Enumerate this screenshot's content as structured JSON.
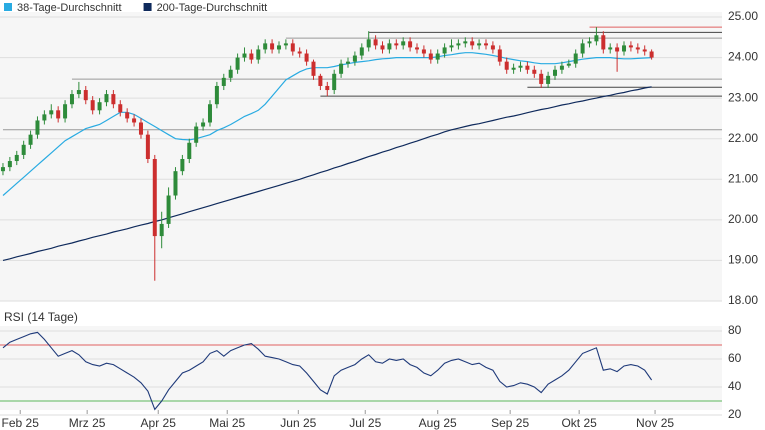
{
  "chart_data": [
    {
      "type": "candlestick",
      "x": [
        0,
        1,
        2,
        3,
        4,
        5,
        6,
        7,
        8,
        9,
        10,
        11,
        12,
        13,
        14,
        15,
        16,
        17,
        18,
        19,
        20,
        21,
        22,
        23,
        24,
        25,
        26,
        27,
        28,
        29,
        30,
        31,
        32,
        33,
        34,
        35,
        36,
        37,
        38,
        39,
        40,
        41,
        42,
        43,
        44,
        45,
        46,
        47,
        48,
        49,
        50,
        51,
        52,
        53,
        54,
        55,
        56,
        57,
        58,
        59,
        60,
        61,
        62,
        63,
        64,
        65,
        66,
        67,
        68,
        69,
        70,
        71,
        72,
        73,
        74,
        75,
        76,
        77,
        78,
        79,
        80,
        81,
        82,
        83,
        84,
        85,
        86,
        87,
        88,
        89,
        90,
        91,
        92,
        93,
        94
      ],
      "open": [
        21.2,
        21.3,
        21.45,
        21.6,
        21.85,
        22.1,
        22.45,
        22.6,
        22.7,
        22.5,
        22.85,
        23.1,
        23.2,
        22.95,
        22.7,
        22.9,
        23.1,
        22.85,
        22.65,
        22.5,
        22.4,
        22.1,
        21.5,
        19.6,
        19.9,
        20.6,
        21.2,
        21.5,
        21.9,
        22.3,
        22.4,
        22.85,
        23.3,
        23.5,
        23.7,
        24.0,
        24.1,
        23.95,
        24.2,
        24.35,
        24.2,
        24.3,
        24.35,
        24.15,
        24.1,
        23.9,
        23.55,
        23.3,
        23.2,
        23.6,
        23.85,
        23.9,
        24.05,
        24.25,
        24.45,
        24.3,
        24.2,
        24.35,
        24.3,
        24.4,
        24.25,
        24.2,
        24.1,
        23.95,
        24.1,
        24.25,
        24.3,
        24.35,
        24.4,
        24.3,
        24.35,
        24.3,
        24.2,
        23.9,
        23.7,
        23.75,
        23.8,
        23.7,
        23.6,
        23.35,
        23.55,
        23.7,
        23.8,
        23.85,
        24.1,
        24.35,
        24.4,
        24.55,
        24.2,
        24.25,
        24.15,
        24.3,
        24.25,
        24.2,
        24.15
      ],
      "high": [
        21.4,
        21.55,
        21.7,
        21.95,
        22.2,
        22.55,
        22.7,
        22.85,
        22.8,
        22.95,
        23.2,
        23.4,
        23.3,
        23.05,
        23.0,
        23.2,
        23.2,
        22.95,
        22.75,
        22.6,
        22.5,
        22.2,
        21.6,
        20.2,
        20.8,
        21.3,
        21.6,
        22.0,
        22.4,
        22.5,
        22.95,
        23.4,
        23.6,
        23.8,
        24.1,
        24.25,
        24.2,
        24.3,
        24.45,
        24.45,
        24.4,
        24.45,
        24.45,
        24.25,
        24.2,
        23.95,
        23.6,
        23.4,
        23.7,
        23.95,
        24.0,
        24.15,
        24.35,
        24.65,
        24.55,
        24.4,
        24.45,
        24.45,
        24.5,
        24.5,
        24.35,
        24.3,
        24.2,
        24.2,
        24.35,
        24.45,
        24.45,
        24.5,
        24.5,
        24.45,
        24.45,
        24.4,
        24.3,
        24.0,
        23.85,
        23.9,
        23.9,
        23.8,
        23.7,
        23.65,
        23.8,
        23.9,
        23.95,
        24.2,
        24.45,
        24.5,
        24.75,
        24.65,
        24.35,
        24.35,
        24.4,
        24.4,
        24.35,
        24.3,
        24.2
      ],
      "low": [
        21.1,
        21.2,
        21.35,
        21.5,
        21.75,
        22.0,
        22.35,
        22.5,
        22.4,
        22.4,
        22.75,
        23.0,
        22.85,
        22.6,
        22.6,
        22.8,
        22.75,
        22.55,
        22.4,
        22.3,
        22.0,
        21.4,
        18.5,
        19.3,
        19.8,
        20.5,
        21.1,
        21.4,
        21.8,
        22.2,
        22.3,
        22.75,
        23.2,
        23.4,
        23.6,
        23.9,
        23.85,
        23.85,
        24.1,
        24.1,
        24.1,
        24.2,
        24.05,
        24.0,
        23.8,
        23.45,
        23.2,
        23.05,
        23.1,
        23.5,
        23.75,
        23.8,
        23.95,
        24.15,
        24.2,
        24.1,
        24.1,
        24.2,
        24.2,
        24.15,
        24.1,
        24.0,
        23.85,
        23.85,
        24.0,
        24.15,
        24.2,
        24.25,
        24.2,
        24.2,
        24.2,
        24.1,
        23.8,
        23.6,
        23.6,
        23.65,
        23.6,
        23.5,
        23.25,
        23.25,
        23.45,
        23.6,
        23.75,
        23.75,
        24.0,
        24.25,
        24.3,
        24.1,
        24.1,
        23.65,
        24.05,
        24.15,
        24.1,
        24.05,
        23.95
      ],
      "close": [
        21.3,
        21.45,
        21.6,
        21.85,
        22.1,
        22.45,
        22.6,
        22.7,
        22.5,
        22.85,
        23.1,
        23.2,
        22.95,
        22.7,
        22.9,
        23.1,
        22.85,
        22.65,
        22.5,
        22.4,
        22.1,
        21.5,
        19.6,
        19.9,
        20.6,
        21.2,
        21.5,
        21.9,
        22.3,
        22.4,
        22.85,
        23.3,
        23.5,
        23.7,
        24.0,
        24.1,
        23.95,
        24.2,
        24.35,
        24.2,
        24.3,
        24.35,
        24.15,
        24.1,
        23.9,
        23.55,
        23.3,
        23.2,
        23.6,
        23.85,
        23.9,
        24.05,
        24.25,
        24.45,
        24.3,
        24.2,
        24.35,
        24.3,
        24.4,
        24.25,
        24.2,
        24.1,
        23.95,
        24.1,
        24.25,
        24.3,
        24.35,
        24.4,
        24.3,
        24.35,
        24.3,
        24.2,
        23.9,
        23.7,
        23.75,
        23.8,
        23.7,
        23.6,
        23.35,
        23.55,
        23.7,
        23.8,
        23.85,
        24.1,
        24.35,
        24.4,
        24.55,
        24.2,
        24.25,
        24.15,
        24.3,
        24.25,
        24.2,
        24.15,
        24.0
      ],
      "up_color": "#2e8b3a",
      "down_color": "#cc2e2e",
      "series": [
        {
          "name": "38-Tage-Durchschnitt",
          "color": "#29abe2",
          "values": [
            20.6,
            20.75,
            20.9,
            21.05,
            21.2,
            21.35,
            21.5,
            21.65,
            21.8,
            21.95,
            22.05,
            22.15,
            22.25,
            22.3,
            22.35,
            22.45,
            22.55,
            22.65,
            22.65,
            22.6,
            22.5,
            22.4,
            22.3,
            22.2,
            22.1,
            22.0,
            21.98,
            21.97,
            22.0,
            22.05,
            22.1,
            22.2,
            22.27,
            22.35,
            22.45,
            22.55,
            22.62,
            22.7,
            22.85,
            23.05,
            23.25,
            23.45,
            23.55,
            23.65,
            23.72,
            23.75,
            23.75,
            23.75,
            23.78,
            23.82,
            23.85,
            23.88,
            23.9,
            23.92,
            23.95,
            23.97,
            23.98,
            24.0,
            24.0,
            24.0,
            24.0,
            24.0,
            24.0,
            24.02,
            24.05,
            24.07,
            24.1,
            24.12,
            24.12,
            24.1,
            24.08,
            24.05,
            24.02,
            23.98,
            23.95,
            23.92,
            23.9,
            23.87,
            23.85,
            23.85,
            23.85,
            23.87,
            23.9,
            23.93,
            23.96,
            23.98,
            24.0,
            24.0,
            24.0,
            23.98,
            23.97,
            23.97,
            23.98,
            23.99,
            24.0
          ]
        },
        {
          "name": "200-Tage-Durchschnitt",
          "color": "#0f2a5c",
          "values": [
            19.0,
            19.04,
            19.09,
            19.13,
            19.17,
            19.22,
            19.26,
            19.3,
            19.35,
            19.39,
            19.43,
            19.48,
            19.52,
            19.57,
            19.61,
            19.65,
            19.7,
            19.74,
            19.78,
            19.83,
            19.87,
            19.91,
            19.96,
            20.0,
            20.05,
            20.1,
            20.15,
            20.2,
            20.25,
            20.3,
            20.35,
            20.4,
            20.45,
            20.5,
            20.55,
            20.6,
            20.65,
            20.7,
            20.75,
            20.8,
            20.85,
            20.9,
            20.95,
            21.0,
            21.06,
            21.11,
            21.17,
            21.22,
            21.28,
            21.33,
            21.39,
            21.44,
            21.5,
            21.56,
            21.61,
            21.67,
            21.72,
            21.78,
            21.83,
            21.89,
            21.94,
            22.0,
            22.06,
            22.11,
            22.17,
            22.22,
            22.26,
            22.3,
            22.34,
            22.37,
            22.41,
            22.45,
            22.49,
            22.53,
            22.56,
            22.6,
            22.64,
            22.68,
            22.72,
            22.75,
            22.79,
            22.83,
            22.86,
            22.9,
            22.93,
            22.97,
            23.0,
            23.04,
            23.07,
            23.11,
            23.14,
            23.18,
            23.21,
            23.25,
            23.28
          ]
        }
      ],
      "levels": [
        {
          "value": 24.75,
          "x_start": 85,
          "color": "#e06060"
        },
        {
          "value": 24.62,
          "x_start": 53,
          "color": "#444444"
        },
        {
          "value": 24.48,
          "x_start": 41,
          "color": "#999999"
        },
        {
          "value": 23.47,
          "x_start": 10,
          "color": "#999999"
        },
        {
          "value": 23.27,
          "x_start": 76,
          "color": "#444444"
        },
        {
          "value": 23.05,
          "x_start": 46,
          "color": "#444444"
        },
        {
          "value": 22.22,
          "x_start": 0,
          "color": "#999999"
        }
      ],
      "xlim": [
        -0.43,
        104.2
      ],
      "ylim": [
        18,
        25
      ],
      "yticks": [
        {
          "value": 18,
          "label": "18.00"
        },
        {
          "value": 19,
          "label": "19.00"
        },
        {
          "value": 20,
          "label": "20.00"
        },
        {
          "value": 21,
          "label": "21.00"
        },
        {
          "value": 22,
          "label": "22.00"
        },
        {
          "value": 23,
          "label": "23.00"
        },
        {
          "value": 24,
          "label": "24.00"
        },
        {
          "value": 25,
          "label": "25.00"
        }
      ],
      "grid": true
    },
    {
      "type": "line",
      "title": "RSI (14 Tage)",
      "x": [
        0,
        1,
        2,
        3,
        4,
        5,
        6,
        7,
        8,
        9,
        10,
        11,
        12,
        13,
        14,
        15,
        16,
        17,
        18,
        19,
        20,
        21,
        22,
        23,
        24,
        25,
        26,
        27,
        28,
        29,
        30,
        31,
        32,
        33,
        34,
        35,
        36,
        37,
        38,
        39,
        40,
        41,
        42,
        43,
        44,
        45,
        46,
        47,
        48,
        49,
        50,
        51,
        52,
        53,
        54,
        55,
        56,
        57,
        58,
        59,
        60,
        61,
        62,
        63,
        64,
        65,
        66,
        67,
        68,
        69,
        70,
        71,
        72,
        73,
        74,
        75,
        76,
        77,
        78,
        79,
        80,
        81,
        82,
        83,
        84,
        85,
        86,
        87,
        88,
        89,
        90,
        91,
        92,
        93,
        94
      ],
      "color": "#1f3a7a",
      "values": [
        68,
        72,
        74,
        76,
        78,
        79,
        74,
        68,
        62,
        64,
        66,
        63,
        58,
        56,
        55,
        57,
        56,
        53,
        50,
        47,
        43,
        37,
        24,
        30,
        38,
        44,
        50,
        52,
        55,
        58,
        64,
        66,
        62,
        66,
        68,
        70,
        71,
        67,
        62,
        61,
        60,
        58,
        56,
        55,
        50,
        44,
        38,
        35,
        48,
        52,
        54,
        56,
        60,
        63,
        58,
        57,
        60,
        59,
        60,
        56,
        54,
        50,
        48,
        52,
        57,
        59,
        60,
        58,
        56,
        57,
        54,
        52,
        44,
        40,
        41,
        43,
        42,
        40,
        36,
        42,
        45,
        48,
        52,
        58,
        64,
        66,
        68,
        52,
        53,
        51,
        55,
        56,
        55,
        52,
        45
      ],
      "levels": [
        {
          "value": 70,
          "color": "#e06060"
        },
        {
          "value": 30,
          "color": "#5cb85c"
        }
      ],
      "xlim": [
        -0.43,
        104.2
      ],
      "xticks": [
        {
          "value": 2.5,
          "label": "Feb 25"
        },
        {
          "value": 12.2,
          "label": "Mrz 25"
        },
        {
          "value": 22.5,
          "label": "Apr 25"
        },
        {
          "value": 32.5,
          "label": "Mai 25"
        },
        {
          "value": 42.8,
          "label": "Jun 25"
        },
        {
          "value": 52.5,
          "label": "Jul 25"
        },
        {
          "value": 63,
          "label": "Aug 25"
        },
        {
          "value": 73.5,
          "label": "Sep 25"
        },
        {
          "value": 83.5,
          "label": "Okt 25"
        },
        {
          "value": 94.5,
          "label": "Nov 25"
        }
      ],
      "ylim": [
        20,
        80
      ],
      "yticks": [
        20,
        40,
        60,
        80
      ],
      "grid": true
    }
  ]
}
